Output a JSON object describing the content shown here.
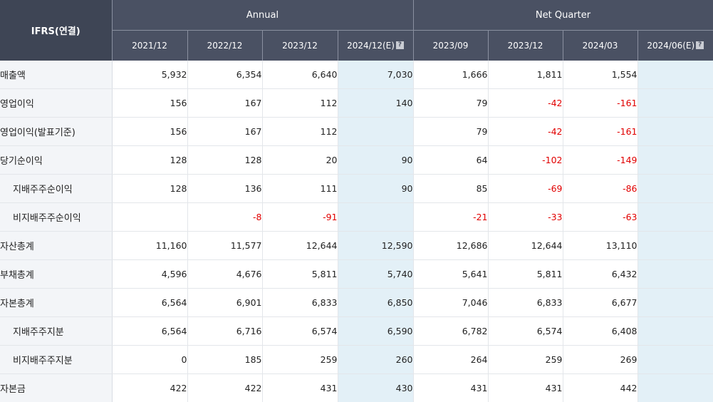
{
  "table": {
    "corner_label": "IFRS(연결)",
    "groups": [
      {
        "label": "Annual"
      },
      {
        "label": "Net Quarter"
      }
    ],
    "periods": [
      {
        "label": "2021/12",
        "estimate": false
      },
      {
        "label": "2022/12",
        "estimate": false
      },
      {
        "label": "2023/12",
        "estimate": false
      },
      {
        "label": "2024/12(E)",
        "estimate": true
      },
      {
        "label": "2023/09",
        "estimate": false
      },
      {
        "label": "2023/12",
        "estimate": false
      },
      {
        "label": "2024/03",
        "estimate": false
      },
      {
        "label": "2024/06(E)",
        "estimate": true
      }
    ],
    "estimate_icon_glyph": "?",
    "rows": [
      {
        "label": "매출액",
        "sub": false,
        "values": [
          "5,932",
          "6,354",
          "6,640",
          "7,030",
          "1,666",
          "1,811",
          "1,554",
          ""
        ]
      },
      {
        "label": "영업이익",
        "sub": false,
        "values": [
          "156",
          "167",
          "112",
          "140",
          "79",
          "-42",
          "-161",
          ""
        ]
      },
      {
        "label": "영업이익(발표기준)",
        "sub": false,
        "values": [
          "156",
          "167",
          "112",
          "",
          "79",
          "-42",
          "-161",
          ""
        ]
      },
      {
        "label": "당기순이익",
        "sub": false,
        "values": [
          "128",
          "128",
          "20",
          "90",
          "64",
          "-102",
          "-149",
          ""
        ]
      },
      {
        "label": "지배주주순이익",
        "sub": true,
        "values": [
          "128",
          "136",
          "111",
          "90",
          "85",
          "-69",
          "-86",
          ""
        ]
      },
      {
        "label": "비지배주주순이익",
        "sub": true,
        "values": [
          "",
          "-8",
          "-91",
          "",
          "-21",
          "-33",
          "-63",
          ""
        ]
      },
      {
        "label": "자산총계",
        "sub": false,
        "values": [
          "11,160",
          "11,577",
          "12,644",
          "12,590",
          "12,686",
          "12,644",
          "13,110",
          ""
        ]
      },
      {
        "label": "부채총계",
        "sub": false,
        "values": [
          "4,596",
          "4,676",
          "5,811",
          "5,740",
          "5,641",
          "5,811",
          "6,432",
          ""
        ]
      },
      {
        "label": "자본총계",
        "sub": false,
        "values": [
          "6,564",
          "6,901",
          "6,833",
          "6,850",
          "7,046",
          "6,833",
          "6,677",
          ""
        ]
      },
      {
        "label": "지배주주지분",
        "sub": true,
        "values": [
          "6,564",
          "6,716",
          "6,574",
          "6,590",
          "6,782",
          "6,574",
          "6,408",
          ""
        ]
      },
      {
        "label": "비지배주주지분",
        "sub": true,
        "values": [
          "0",
          "185",
          "259",
          "260",
          "264",
          "259",
          "269",
          ""
        ]
      },
      {
        "label": "자본금",
        "sub": false,
        "values": [
          "422",
          "422",
          "431",
          "430",
          "431",
          "431",
          "442",
          ""
        ]
      }
    ],
    "colors": {
      "header_bg": "#4a5163",
      "corner_bg": "#3e4555",
      "label_bg": "#f3f5f8",
      "estimate_bg": "#e3f0f7",
      "negative_text": "#e10000"
    }
  }
}
